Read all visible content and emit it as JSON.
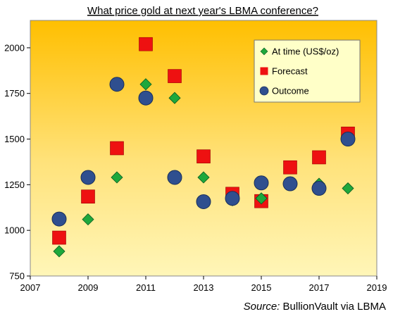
{
  "chart_data": {
    "type": "scatter",
    "title": "What price gold at next year's LBMA conference?",
    "xlabel": "",
    "ylabel": "",
    "xlim": [
      2007,
      2019
    ],
    "ylim": [
      750,
      2150
    ],
    "x_ticks": [
      2007,
      2009,
      2011,
      2013,
      2015,
      2017,
      2019
    ],
    "y_ticks": [
      750,
      1000,
      1250,
      1500,
      1750,
      2000
    ],
    "x_tick_labels": [
      "2007",
      "2009",
      "2011",
      "2013",
      "2015",
      "2017",
      "2019"
    ],
    "y_tick_labels": [
      "750",
      "1000",
      "1250",
      "1500",
      "1750",
      "2000"
    ],
    "legend_position": "top-right",
    "grid": false,
    "background": "gradient-orange-to-yellow",
    "series": [
      {
        "name": "At time (US$/oz)",
        "marker": "diamond",
        "color": "#1ea83c",
        "points": [
          {
            "x": 2008,
            "y": 885
          },
          {
            "x": 2009,
            "y": 1060
          },
          {
            "x": 2010,
            "y": 1290
          },
          {
            "x": 2011,
            "y": 1800
          },
          {
            "x": 2012,
            "y": 1725
          },
          {
            "x": 2013,
            "y": 1290
          },
          {
            "x": 2014,
            "y": 1165
          },
          {
            "x": 2015,
            "y": 1175
          },
          {
            "x": 2016,
            "y": 1260
          },
          {
            "x": 2017,
            "y": 1255
          },
          {
            "x": 2018,
            "y": 1230
          }
        ]
      },
      {
        "name": "Forecast",
        "marker": "square",
        "color": "#ee1111",
        "points": [
          {
            "x": 2008,
            "y": 960
          },
          {
            "x": 2009,
            "y": 1185
          },
          {
            "x": 2010,
            "y": 1450
          },
          {
            "x": 2011,
            "y": 2020
          },
          {
            "x": 2012,
            "y": 1845
          },
          {
            "x": 2013,
            "y": 1405
          },
          {
            "x": 2014,
            "y": 1200
          },
          {
            "x": 2015,
            "y": 1160
          },
          {
            "x": 2016,
            "y": 1345
          },
          {
            "x": 2017,
            "y": 1400
          },
          {
            "x": 2018,
            "y": 1530
          }
        ]
      },
      {
        "name": "Outcome",
        "marker": "circle",
        "color": "#2f4f8f",
        "points": [
          {
            "x": 2008,
            "y": 1062
          },
          {
            "x": 2009,
            "y": 1290
          },
          {
            "x": 2010,
            "y": 1800
          },
          {
            "x": 2011,
            "y": 1725
          },
          {
            "x": 2012,
            "y": 1290
          },
          {
            "x": 2013,
            "y": 1157
          },
          {
            "x": 2014,
            "y": 1175
          },
          {
            "x": 2015,
            "y": 1260
          },
          {
            "x": 2016,
            "y": 1255
          },
          {
            "x": 2017,
            "y": 1230
          },
          {
            "x": 2018,
            "y": 1500
          }
        ]
      }
    ]
  },
  "source": {
    "prefix": "Source:",
    "text": " BullionVault via LBMA"
  }
}
